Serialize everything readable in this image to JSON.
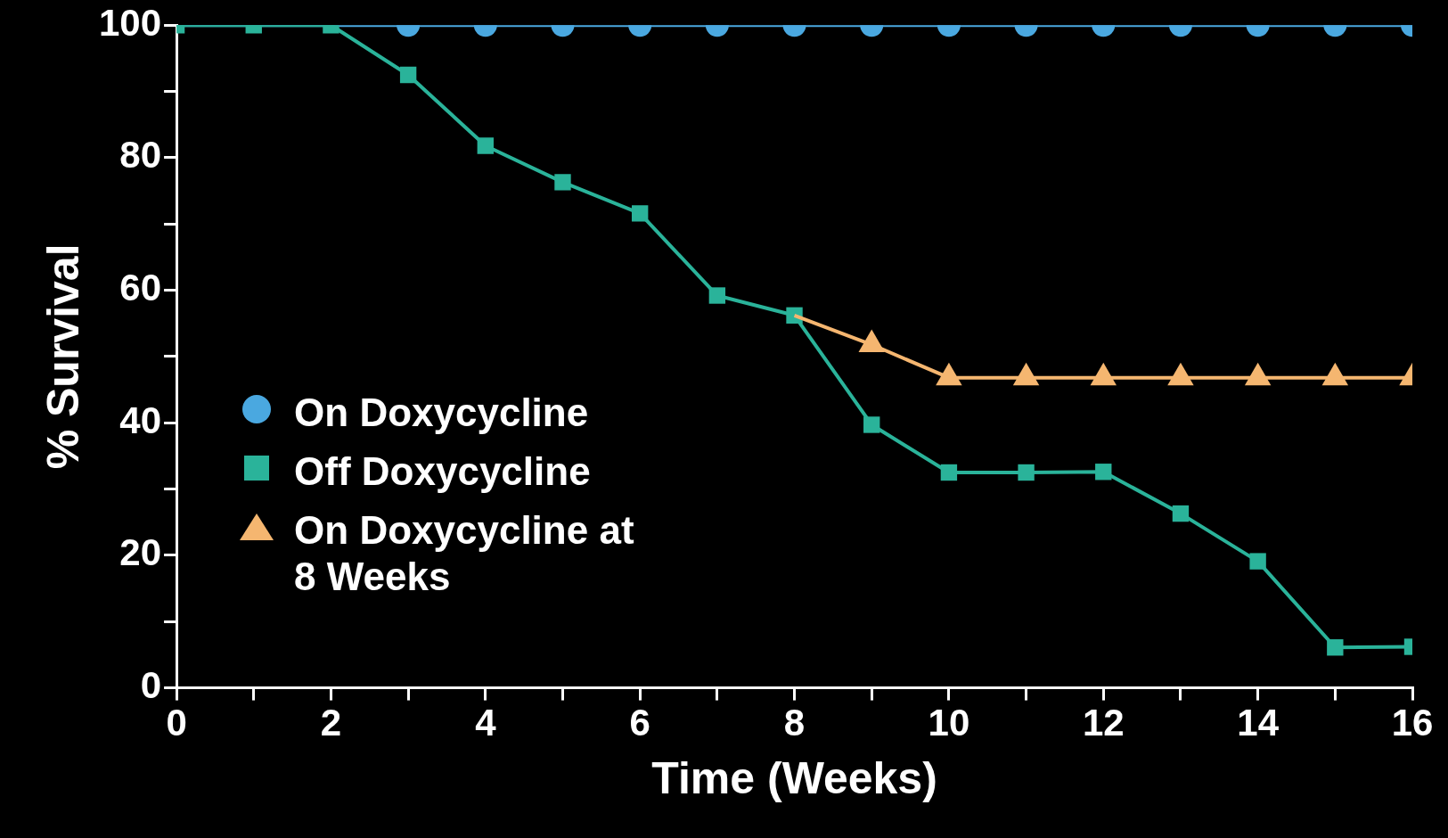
{
  "chart_data": {
    "type": "line",
    "xlabel": "Time (Weeks)",
    "ylabel": "% Survival",
    "x": [
      0,
      1,
      2,
      3,
      4,
      5,
      6,
      7,
      8,
      9,
      10,
      11,
      12,
      13,
      14,
      15,
      16
    ],
    "xlim": [
      0,
      16
    ],
    "xticks": [
      0,
      {
        "value": 1,
        "label": null
      },
      2,
      {
        "value": 3,
        "label": null
      },
      4,
      {
        "value": 5,
        "label": null
      },
      6,
      {
        "value": 7,
        "label": null
      },
      8,
      {
        "value": 9,
        "label": null
      },
      10,
      {
        "value": 11,
        "label": null
      },
      12,
      {
        "value": 13,
        "label": null
      },
      14,
      {
        "value": 15,
        "label": null
      },
      16
    ],
    "ylim": [
      0,
      100
    ],
    "yticks": [
      0,
      {
        "value": 10,
        "label": null
      },
      20,
      {
        "value": 30,
        "label": null
      },
      40,
      {
        "value": 50,
        "label": null
      },
      60,
      {
        "value": 70,
        "label": null
      },
      80,
      {
        "value": 90,
        "label": null
      },
      100
    ],
    "grid": false,
    "legend": "left",
    "line_style": "solid",
    "series": [
      {
        "name": "On Doxycycline",
        "color": "#4aa8e0",
        "marker": "circle",
        "values": [
          100,
          100,
          100,
          100,
          100,
          100,
          100,
          100,
          100,
          100,
          100,
          100,
          100,
          100,
          100,
          100,
          100
        ]
      },
      {
        "name": "On Doxycycline at 8 Weeks",
        "color": "#f5b670",
        "marker": "triangle",
        "values": [
          null,
          null,
          null,
          null,
          null,
          null,
          null,
          null,
          56.2,
          51.8,
          46.8,
          46.8,
          46.8,
          46.8,
          46.8,
          46.8,
          46.8
        ]
      },
      {
        "name": "Off Doxycycline",
        "color": "#2ab39a",
        "marker": "square",
        "values": [
          100,
          100,
          100,
          92.5,
          81.8,
          76.3,
          71.6,
          59.2,
          56.2,
          39.7,
          32.5,
          32.5,
          32.6,
          26.3,
          19.1,
          6.1,
          6.2
        ]
      }
    ]
  }
}
